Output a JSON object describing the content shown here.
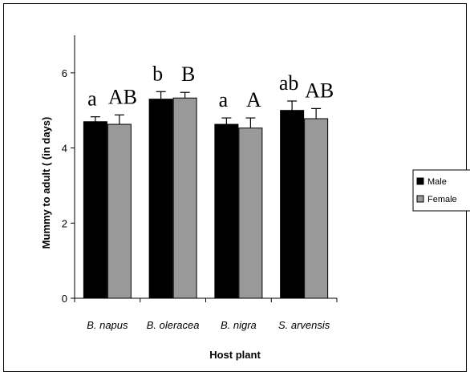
{
  "chart_data": {
    "type": "bar",
    "categories": [
      "B. napus",
      "B. oleracea",
      "B. nigra",
      "S. arvensis"
    ],
    "series": [
      {
        "name": "Male",
        "values": [
          4.7,
          5.3,
          4.63,
          5.0
        ],
        "errors": [
          0.13,
          0.2,
          0.17,
          0.25
        ],
        "color": "#000000"
      },
      {
        "name": "Female",
        "values": [
          4.63,
          5.33,
          4.53,
          4.78
        ],
        "errors": [
          0.25,
          0.15,
          0.27,
          0.27
        ],
        "color": "#999999"
      }
    ],
    "significance_male": [
      "a",
      "b",
      "a",
      "ab"
    ],
    "significance_female": [
      "AB",
      "B",
      "A",
      "AB"
    ],
    "xlabel": "Host plant",
    "ylabel": "Mummy to adult ( (in days)",
    "ylim": [
      0,
      7
    ],
    "yticks": [
      "0",
      "2",
      "4",
      "6"
    ],
    "yticks_values": [
      0,
      2,
      4,
      6
    ],
    "grid": false,
    "legend_position": "right"
  }
}
